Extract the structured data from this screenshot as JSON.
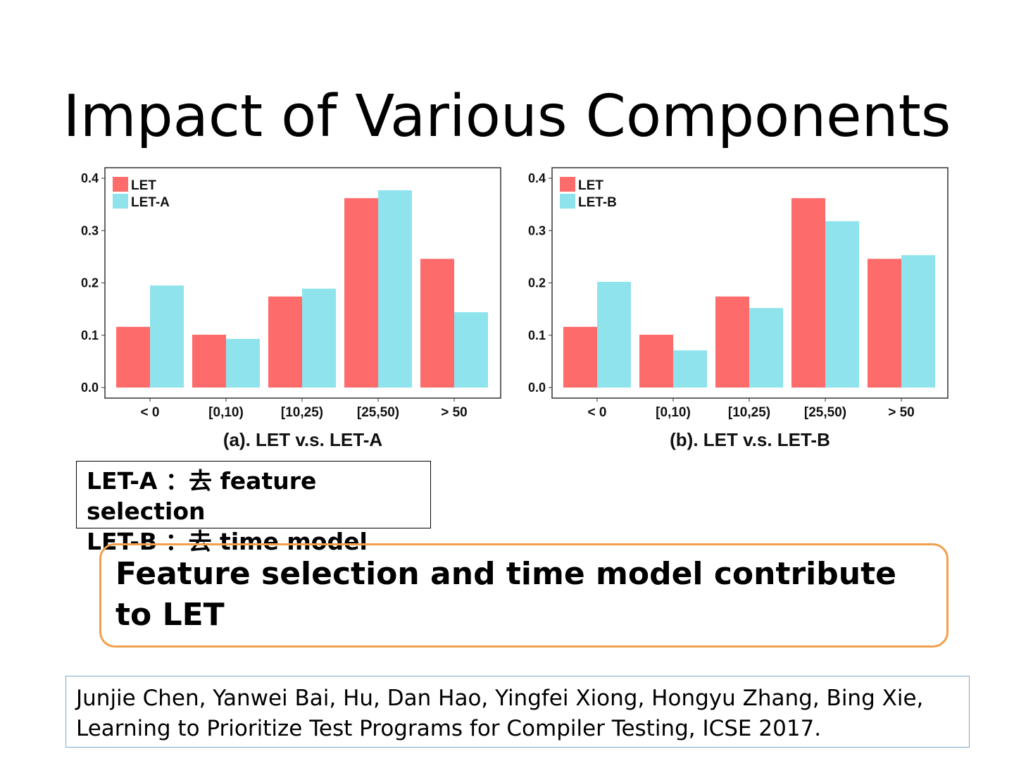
{
  "slide": {
    "title": "Impact of Various Components",
    "definitions": [
      "LET-A ：去 feature selection",
      "LET-B ：去 time model"
    ],
    "conclusion": "Feature selection and time model contribute to LET",
    "citation": [
      "Junjie Chen, Yanwei Bai, Hu, Dan Hao, Yingfei Xiong, Hongyu Zhang, Bing Xie,",
      "Learning to Prioritize Test Programs for Compiler Testing, ICSE 2017."
    ]
  },
  "chart_data": [
    {
      "type": "bar",
      "title": "(a). LET v.s. LET-A",
      "categories": [
        "< 0",
        "[0,10)",
        "[10,25)",
        "[25,50)",
        "> 50"
      ],
      "series": [
        {
          "name": "LET",
          "color": "#fe6b6b",
          "values": [
            0.116,
            0.101,
            0.174,
            0.362,
            0.246
          ]
        },
        {
          "name": "LET-A",
          "color": "#8ee3ec",
          "values": [
            0.195,
            0.093,
            0.189,
            0.377,
            0.144
          ]
        }
      ],
      "yticks": [
        "0.0",
        "0.1",
        "0.2",
        "0.3",
        "0.4"
      ],
      "ylim": [
        0,
        0.42
      ],
      "legend": "top-left"
    },
    {
      "type": "bar",
      "title": "(b). LET v.s. LET-B",
      "categories": [
        "< 0",
        "[0,10)",
        "[10,25)",
        "[25,50)",
        "> 50"
      ],
      "series": [
        {
          "name": "LET",
          "color": "#fe6b6b",
          "values": [
            0.116,
            0.101,
            0.174,
            0.362,
            0.246
          ]
        },
        {
          "name": "LET-B",
          "color": "#8ee3ec",
          "values": [
            0.202,
            0.071,
            0.152,
            0.318,
            0.253
          ]
        }
      ],
      "yticks": [
        "0.0",
        "0.1",
        "0.2",
        "0.3",
        "0.4"
      ],
      "ylim": [
        0,
        0.42
      ],
      "legend": "top-left"
    }
  ]
}
